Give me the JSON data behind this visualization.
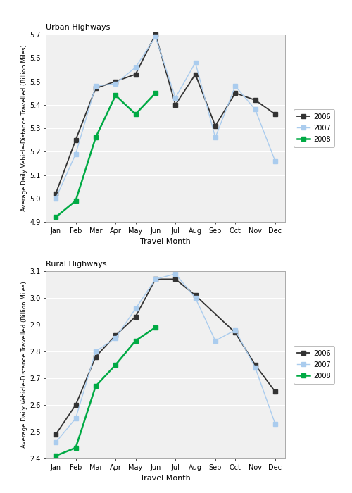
{
  "months": [
    "Jan",
    "Feb",
    "Mar",
    "Apr",
    "May",
    "Jun",
    "Jul",
    "Aug",
    "Sep",
    "Oct",
    "Nov",
    "Dec"
  ],
  "urban": {
    "2006": [
      5.02,
      5.25,
      5.47,
      5.5,
      5.53,
      5.7,
      5.4,
      5.53,
      5.31,
      5.45,
      5.42,
      5.36
    ],
    "2007": [
      5.0,
      5.19,
      5.48,
      5.49,
      5.56,
      5.69,
      5.43,
      5.58,
      5.26,
      5.48,
      5.38,
      5.16
    ],
    "2008": [
      4.92,
      4.99,
      5.26,
      5.44,
      5.36,
      5.45,
      null,
      null,
      null,
      null,
      null,
      null
    ]
  },
  "rural": {
    "2006": [
      2.49,
      2.6,
      2.78,
      2.86,
      2.93,
      3.07,
      3.07,
      3.01,
      null,
      2.87,
      2.75,
      2.65
    ],
    "2007": [
      2.46,
      2.55,
      2.8,
      2.85,
      2.96,
      3.07,
      3.09,
      3.0,
      2.84,
      2.88,
      2.74,
      2.53
    ],
    "2008": [
      2.41,
      2.44,
      2.67,
      2.75,
      2.84,
      2.89,
      null,
      null,
      null,
      null,
      null,
      null
    ]
  },
  "urban_ylim": [
    4.9,
    5.7
  ],
  "urban_yticks": [
    4.9,
    5.0,
    5.1,
    5.2,
    5.3,
    5.4,
    5.5,
    5.6,
    5.7
  ],
  "rural_ylim": [
    2.4,
    3.1
  ],
  "rural_yticks": [
    2.4,
    2.5,
    2.6,
    2.7,
    2.8,
    2.9,
    3.0,
    3.1
  ],
  "color_2006": "#333333",
  "color_2007": "#aaccee",
  "color_2008": "#00aa44",
  "ylabel": "Average Daily Vehicle-Distance Travelled (Billion Miles)",
  "xlabel": "Travel Month",
  "urban_title": "Urban Highways",
  "rural_title": "Rural Highways",
  "legend_labels": [
    "2006",
    "2007",
    "2008"
  ],
  "bg_color": "#f0f0f0"
}
